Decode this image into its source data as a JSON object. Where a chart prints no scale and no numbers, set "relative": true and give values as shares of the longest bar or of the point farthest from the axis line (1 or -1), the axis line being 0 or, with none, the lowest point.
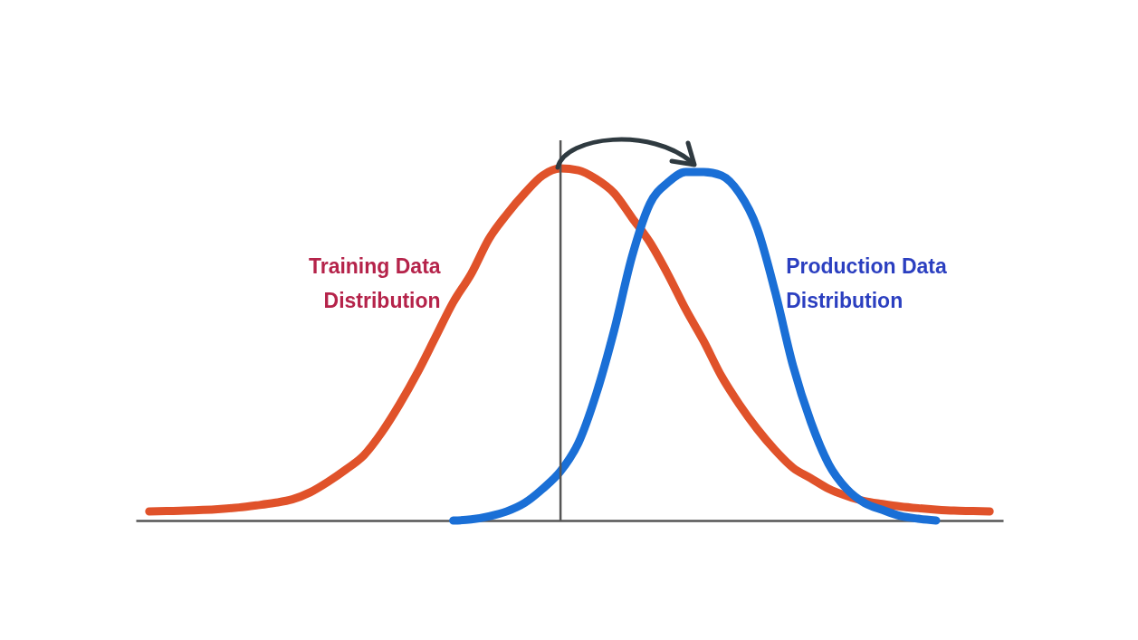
{
  "chart_data": {
    "type": "line",
    "relative": true,
    "categories": [
      null,
      null,
      null,
      null,
      null,
      null,
      null,
      null,
      null,
      null,
      null,
      null,
      null,
      null,
      null,
      null,
      null,
      null,
      null,
      null,
      null,
      null,
      null,
      null,
      null,
      null,
      null,
      null,
      null,
      null,
      null,
      null,
      null,
      null,
      null,
      null,
      null,
      null,
      null,
      null,
      null,
      null,
      null,
      null,
      null,
      null,
      null,
      null
    ],
    "series": [
      {
        "name": "Training Data Distribution",
        "color": "#e0522a",
        "values": [
          0.026,
          0.027,
          0.028,
          0.03,
          0.033,
          0.037,
          0.043,
          0.05,
          0.06,
          0.08,
          0.11,
          0.145,
          0.185,
          0.25,
          0.33,
          0.42,
          0.52,
          0.62,
          0.7,
          0.8,
          0.87,
          0.93,
          0.98,
          1,
          0.995,
          0.97,
          0.93,
          0.86,
          0.79,
          0.7,
          0.6,
          0.51,
          0.41,
          0.33,
          0.26,
          0.2,
          0.15,
          0.12,
          0.09,
          0.07,
          0.055,
          0.047,
          0.04,
          0.035,
          0.031,
          0.028,
          0.027,
          0.026
        ]
      },
      {
        "name": "Production Data Distribution",
        "color": "#1a6fd6",
        "values": [
          null,
          null,
          null,
          null,
          null,
          null,
          null,
          null,
          null,
          null,
          null,
          null,
          null,
          null,
          null,
          null,
          null,
          0,
          0.003,
          0.012,
          0.026,
          0.05,
          0.09,
          0.14,
          0.22,
          0.36,
          0.54,
          0.75,
          0.9,
          0.96,
          0.99,
          0.99,
          0.98,
          0.93,
          0.83,
          0.65,
          0.44,
          0.28,
          0.16,
          0.09,
          0.05,
          0.03,
          0.013,
          0.005,
          0,
          null,
          null,
          null
        ]
      }
    ],
    "line_style": "solid"
  }
}
